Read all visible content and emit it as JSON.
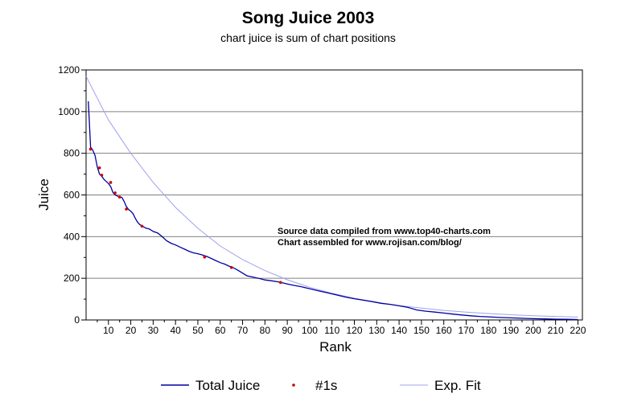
{
  "chart_data": {
    "type": "line",
    "title": "Song Juice 2003",
    "subtitle": "chart juice is sum of chart positions",
    "xlabel": "Rank",
    "ylabel": "Juice",
    "xlim": [
      0,
      222
    ],
    "ylim": [
      0,
      1200
    ],
    "x_ticks": [
      10,
      20,
      30,
      40,
      50,
      60,
      70,
      80,
      90,
      100,
      110,
      120,
      130,
      140,
      150,
      160,
      170,
      180,
      190,
      200,
      210,
      220
    ],
    "y_ticks": [
      0,
      200,
      400,
      600,
      800,
      1000,
      1200
    ],
    "grid": "horizontal",
    "annotations": [
      "Source data compiled from www.top40-charts.com",
      "Chart assembled for www.rojisan.com/blog/"
    ],
    "legend_position": "bottom",
    "series": [
      {
        "name": "Total Juice",
        "kind": "line",
        "color": "#0000a0",
        "points": [
          [
            1,
            1050
          ],
          [
            2,
            830
          ],
          [
            3,
            815
          ],
          [
            4,
            790
          ],
          [
            5,
            735
          ],
          [
            6,
            700
          ],
          [
            7,
            690
          ],
          [
            8,
            675
          ],
          [
            9,
            665
          ],
          [
            10,
            655
          ],
          [
            11,
            640
          ],
          [
            12,
            612
          ],
          [
            13,
            600
          ],
          [
            14,
            595
          ],
          [
            15,
            590
          ],
          [
            16,
            588
          ],
          [
            17,
            570
          ],
          [
            18,
            545
          ],
          [
            19,
            530
          ],
          [
            20,
            522
          ],
          [
            21,
            510
          ],
          [
            22,
            488
          ],
          [
            23,
            470
          ],
          [
            24,
            458
          ],
          [
            25,
            452
          ],
          [
            26,
            445
          ],
          [
            27,
            440
          ],
          [
            28,
            438
          ],
          [
            29,
            432
          ],
          [
            30,
            425
          ],
          [
            32,
            418
          ],
          [
            34,
            400
          ],
          [
            36,
            380
          ],
          [
            38,
            368
          ],
          [
            40,
            360
          ],
          [
            42,
            350
          ],
          [
            44,
            340
          ],
          [
            46,
            330
          ],
          [
            48,
            322
          ],
          [
            50,
            318
          ],
          [
            52,
            312
          ],
          [
            54,
            305
          ],
          [
            56,
            295
          ],
          [
            58,
            285
          ],
          [
            60,
            275
          ],
          [
            62,
            268
          ],
          [
            64,
            258
          ],
          [
            66,
            250
          ],
          [
            68,
            238
          ],
          [
            70,
            225
          ],
          [
            72,
            212
          ],
          [
            75,
            205
          ],
          [
            78,
            198
          ],
          [
            80,
            192
          ],
          [
            83,
            188
          ],
          [
            86,
            183
          ],
          [
            88,
            178
          ],
          [
            90,
            173
          ],
          [
            93,
            166
          ],
          [
            96,
            160
          ],
          [
            100,
            150
          ],
          [
            104,
            140
          ],
          [
            108,
            130
          ],
          [
            112,
            120
          ],
          [
            116,
            110
          ],
          [
            120,
            102
          ],
          [
            124,
            95
          ],
          [
            128,
            88
          ],
          [
            132,
            80
          ],
          [
            136,
            75
          ],
          [
            140,
            68
          ],
          [
            144,
            60
          ],
          [
            148,
            48
          ],
          [
            152,
            42
          ],
          [
            156,
            38
          ],
          [
            160,
            33
          ],
          [
            164,
            28
          ],
          [
            168,
            24
          ],
          [
            172,
            20
          ],
          [
            176,
            17
          ],
          [
            180,
            15
          ],
          [
            185,
            12
          ],
          [
            190,
            10
          ],
          [
            195,
            8
          ],
          [
            200,
            6
          ],
          [
            205,
            5
          ],
          [
            210,
            4
          ],
          [
            215,
            3
          ],
          [
            220,
            2
          ]
        ]
      },
      {
        "name": "#1s",
        "kind": "points",
        "color": "#cc0000",
        "points": [
          [
            2,
            820
          ],
          [
            6,
            730
          ],
          [
            7,
            695
          ],
          [
            11,
            660
          ],
          [
            13,
            610
          ],
          [
            15,
            590
          ],
          [
            18,
            532
          ],
          [
            25,
            450
          ],
          [
            53,
            302
          ],
          [
            65,
            252
          ],
          [
            87,
            180
          ]
        ]
      },
      {
        "name": "Exp. Fit",
        "kind": "line",
        "color": "#a0a0f0",
        "points": [
          [
            0,
            1170
          ],
          [
            10,
            960
          ],
          [
            20,
            800
          ],
          [
            30,
            660
          ],
          [
            40,
            540
          ],
          [
            50,
            440
          ],
          [
            60,
            355
          ],
          [
            70,
            290
          ],
          [
            80,
            237
          ],
          [
            90,
            193
          ],
          [
            100,
            157
          ],
          [
            110,
            128
          ],
          [
            120,
            104
          ],
          [
            130,
            85
          ],
          [
            140,
            69
          ],
          [
            150,
            57
          ],
          [
            160,
            46
          ],
          [
            170,
            38
          ],
          [
            180,
            31
          ],
          [
            190,
            25
          ],
          [
            200,
            20
          ],
          [
            210,
            17
          ],
          [
            220,
            14
          ]
        ]
      }
    ]
  }
}
